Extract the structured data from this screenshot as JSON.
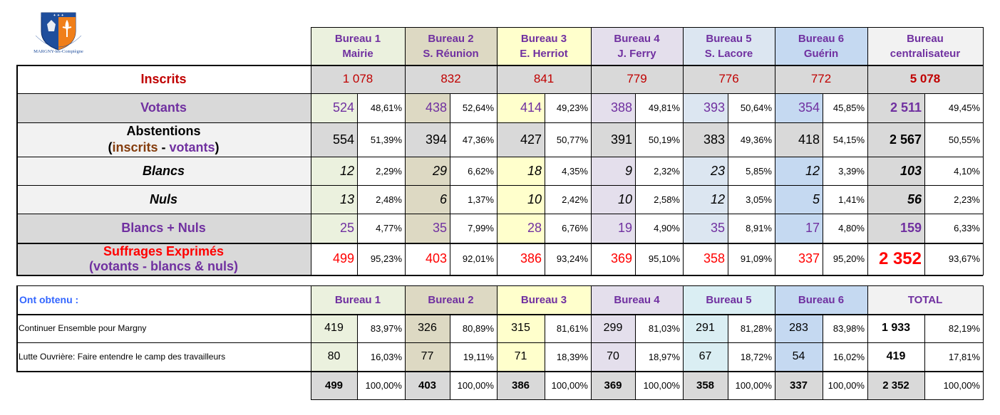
{
  "colors": {
    "b1": "#ebf1de",
    "b2": "#ddd9c3",
    "b3": "#ffffcc",
    "b4": "#e4dfec",
    "b5": "#dce6f1",
    "b6": "#c5d9f1",
    "gray": "#d9d9d9",
    "light": "#f2f2f2",
    "b5b": "#daeef3"
  },
  "logo": {
    "text": "MARGNY-lès-Compiègne"
  },
  "header": {
    "bureaus": [
      {
        "line1": "Bureau 1",
        "line2": "Mairie"
      },
      {
        "line1": "Bureau 2",
        "line2": "S. Réunion"
      },
      {
        "line1": "Bureau 3",
        "line2": "E. Herriot"
      },
      {
        "line1": "Bureau 4",
        "line2": "J. Ferry"
      },
      {
        "line1": "Bureau 5",
        "line2": "S. Lacore"
      },
      {
        "line1": "Bureau 6",
        "line2": "Guérin"
      },
      {
        "line1": "Bureau",
        "line2": "centralisateur"
      }
    ]
  },
  "inscrits": {
    "label": "Inscrits",
    "values": [
      "1 078",
      "832",
      "841",
      "779",
      "776",
      "772",
      "5 078"
    ]
  },
  "rows": {
    "votants": {
      "label": "Votants",
      "values": [
        "524",
        "438",
        "414",
        "388",
        "393",
        "354",
        "2 511"
      ],
      "pcts": [
        "48,61%",
        "52,64%",
        "49,23%",
        "49,81%",
        "50,64%",
        "45,85%",
        "49,45%"
      ]
    },
    "abstentions": {
      "label": "Abstentions",
      "sub_open": "(",
      "sub_a": "inscrits",
      "sub_dash": " - ",
      "sub_b": "votants",
      "sub_close": ")",
      "values": [
        "554",
        "394",
        "427",
        "391",
        "383",
        "418",
        "2 567"
      ],
      "pcts": [
        "51,39%",
        "47,36%",
        "50,77%",
        "50,19%",
        "49,36%",
        "54,15%",
        "50,55%"
      ]
    },
    "blancs": {
      "label": "Blancs",
      "values": [
        "12",
        "29",
        "18",
        "9",
        "23",
        "12",
        "103"
      ],
      "pcts": [
        "2,29%",
        "6,62%",
        "4,35%",
        "2,32%",
        "5,85%",
        "3,39%",
        "4,10%"
      ]
    },
    "nuls": {
      "label": "Nuls",
      "values": [
        "13",
        "6",
        "10",
        "10",
        "12",
        "5",
        "56"
      ],
      "pcts": [
        "2,48%",
        "1,37%",
        "2,42%",
        "2,58%",
        "3,05%",
        "1,41%",
        "2,23%"
      ]
    },
    "blancsnuls": {
      "label": "Blancs + Nuls",
      "values": [
        "25",
        "35",
        "28",
        "19",
        "35",
        "17",
        "159"
      ],
      "pcts": [
        "4,77%",
        "7,99%",
        "6,76%",
        "4,90%",
        "8,91%",
        "4,80%",
        "6,33%"
      ]
    },
    "exprimes": {
      "label": "Suffrages Exprimés",
      "sub": "(votants - blancs & nuls)",
      "values": [
        "499",
        "403",
        "386",
        "369",
        "358",
        "337",
        "2 352"
      ],
      "pcts": [
        "95,23%",
        "92,01%",
        "93,24%",
        "95,10%",
        "91,09%",
        "95,20%",
        "93,67%"
      ]
    }
  },
  "results": {
    "title": "Ont obtenu :",
    "headers": [
      "Bureau 1",
      "Bureau 2",
      "Bureau 3",
      "Bureau 4",
      "Bureau 5",
      "Bureau 6",
      "TOTAL"
    ],
    "lists": [
      {
        "name": "Continuer Ensemble pour Margny",
        "values": [
          "419",
          "326",
          "315",
          "299",
          "291",
          "283",
          "1 933"
        ],
        "pcts": [
          "83,97%",
          "80,89%",
          "81,61%",
          "81,03%",
          "81,28%",
          "83,98%",
          "82,19%"
        ]
      },
      {
        "name": "Lutte Ouvrière: Faire entendre le camp des travailleurs",
        "values": [
          "80",
          "77",
          "71",
          "70",
          "67",
          "54",
          "419"
        ],
        "pcts": [
          "16,03%",
          "19,11%",
          "18,39%",
          "18,97%",
          "18,72%",
          "16,02%",
          "17,81%"
        ]
      }
    ],
    "totals": {
      "values": [
        "499",
        "403",
        "386",
        "369",
        "358",
        "337",
        "2 352"
      ],
      "pcts": [
        "100,00%",
        "100,00%",
        "100,00%",
        "100,00%",
        "100,00%",
        "100,00%",
        "100,00%"
      ]
    }
  }
}
